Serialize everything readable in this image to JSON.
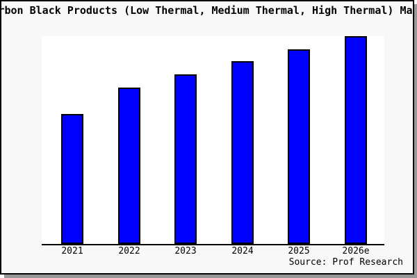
{
  "window": {
    "visible_title": "rbon Black Products (Low Thermal, Medium Thermal, High Thermal) Mar",
    "source_note": "Source: Prof Research"
  },
  "colors": {
    "bar_fill": "#0000ff",
    "bar_border": "#000000",
    "panel_background": "#f8f8f8",
    "plot_background": "#ffffff",
    "axis_line": "#000000",
    "drop_shadow": "#999999",
    "text": "#000000"
  },
  "chart_data": {
    "type": "bar",
    "title": "rbon Black Products (Low Thermal, Medium Thermal, High Thermal) Mar",
    "title_note": "title is clipped at both left and right edges of the image",
    "categories": [
      "2021",
      "2022",
      "2023",
      "2024",
      "2025",
      "2026e"
    ],
    "values": [
      62.6,
      75.1,
      81.5,
      87.9,
      93.7,
      100
    ],
    "unit": "relative index (2026e = 100); y-axis has no ticks or labels in the image",
    "xlabel": "",
    "ylabel": "",
    "ylim": [
      0,
      100.2
    ],
    "grid": false,
    "legend": "none",
    "bar_color": "#0000ff",
    "annotations": [
      "Source: Prof Research"
    ]
  }
}
